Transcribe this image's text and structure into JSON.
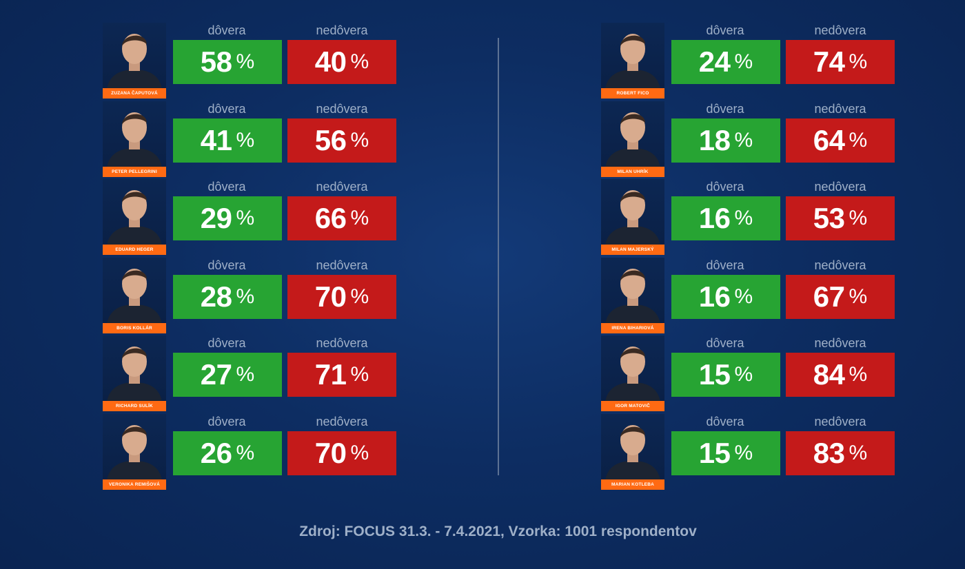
{
  "colors": {
    "trust": "#27a433",
    "distrust": "#c41a1a",
    "name_tag": "#ff6a13",
    "label": "#9fb0c8",
    "background": "#0d2d62"
  },
  "chart_data": {
    "type": "table",
    "columns": [
      "dôvera",
      "nedôvera"
    ],
    "unit": "%",
    "rows": [
      {
        "name": "ZUZANA ČAPUTOVÁ",
        "trust": 58,
        "distrust": 40
      },
      {
        "name": "PETER PELLEGRINI",
        "trust": 41,
        "distrust": 56
      },
      {
        "name": "EDUARD HEGER",
        "trust": 29,
        "distrust": 66
      },
      {
        "name": "BORIS KOLLÁR",
        "trust": 28,
        "distrust": 70
      },
      {
        "name": "RICHARD SULÍK",
        "trust": 27,
        "distrust": 71
      },
      {
        "name": "VERONIKA REMIŠOVÁ",
        "trust": 26,
        "distrust": 70
      },
      {
        "name": "ROBERT FICO",
        "trust": 24,
        "distrust": 74
      },
      {
        "name": "MILAN UHRÍK",
        "trust": 18,
        "distrust": 64
      },
      {
        "name": "MILAN MAJERSKÝ",
        "trust": 16,
        "distrust": 53
      },
      {
        "name": "IRENA BIHARIOVÁ",
        "trust": 16,
        "distrust": 67
      },
      {
        "name": "IGOR MATOVIČ",
        "trust": 15,
        "distrust": 84
      },
      {
        "name": "MARIAN KOTLEBA",
        "trust": 15,
        "distrust": 83
      }
    ],
    "source": "Zdroj: FOCUS 31.3. - 7.4.2021, Vzorka: 1001 respondentov"
  }
}
